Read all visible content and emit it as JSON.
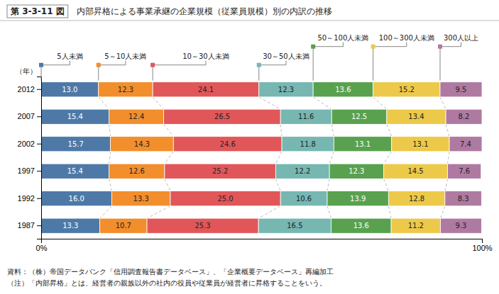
{
  "chart_data": {
    "type": "bar",
    "orientation": "horizontal",
    "stacked": true,
    "data_labels": true,
    "grid": false,
    "legend": "top",
    "title": "第 3-3-11 図",
    "subtitle": "内部昇格による事業承継の企業規模（従業員規模）別の内訳の推移",
    "ylabel": "（年）",
    "categories": [
      "2012",
      "2007",
      "2002",
      "1997",
      "1992",
      "1987"
    ],
    "xlim": [
      0,
      100
    ],
    "xticks": [
      {
        "value": 0,
        "label": "0%"
      },
      {
        "value": 100,
        "label": "100%"
      }
    ],
    "series": [
      {
        "name": "5人未満",
        "values": [
          13.0,
          15.4,
          15.7,
          15.4,
          16.0,
          13.3
        ],
        "value_labels": [
          "13.0",
          "15.4",
          "15.7",
          "15.4",
          "16.0",
          "13.3"
        ]
      },
      {
        "name": "5～10人未満",
        "values": [
          12.3,
          12.4,
          14.3,
          12.6,
          13.3,
          10.7
        ],
        "value_labels": [
          "12.3",
          "12.4",
          "14.3",
          "12.6",
          "13.3",
          "10.7"
        ]
      },
      {
        "name": "10～30人未満",
        "values": [
          24.1,
          26.5,
          24.6,
          25.2,
          25.0,
          25.3
        ],
        "value_labels": [
          "24.1",
          "26.5",
          "24.6",
          "25.2",
          "25.0",
          "25.3"
        ]
      },
      {
        "name": "30～50人未満",
        "values": [
          12.3,
          11.6,
          11.8,
          12.2,
          10.6,
          16.5
        ],
        "value_labels": [
          "12.3",
          "11.6",
          "11.8",
          "12.2",
          "10.6",
          "16.5"
        ]
      },
      {
        "name": "50～100人未満",
        "values": [
          13.6,
          12.5,
          13.1,
          12.3,
          13.9,
          13.6
        ],
        "value_labels": [
          "13.6",
          "12.5",
          "13.1",
          "12.3",
          "13.9",
          "13.6"
        ]
      },
      {
        "name": "100～300人未満",
        "values": [
          15.2,
          13.4,
          13.1,
          14.5,
          12.8,
          11.2
        ],
        "value_labels": [
          "15.2",
          "13.4",
          "13.1",
          "14.5",
          "12.8",
          "11.2"
        ]
      },
      {
        "name": "300人以上",
        "values": [
          9.5,
          8.2,
          7.4,
          7.6,
          8.3,
          9.3
        ],
        "value_labels": [
          "9.5",
          "8.2",
          "7.4",
          "7.6",
          "8.3",
          "9.3"
        ]
      }
    ],
    "annotations": [
      "資料：（株）帝国データバンク「信用調査報告書データベース」、「企業概要データベース」再編加工",
      "（注）「内部昇格」とは、経営者の親族以外の社内の役員や従業員が経営者に昇格することをいう。"
    ]
  }
}
